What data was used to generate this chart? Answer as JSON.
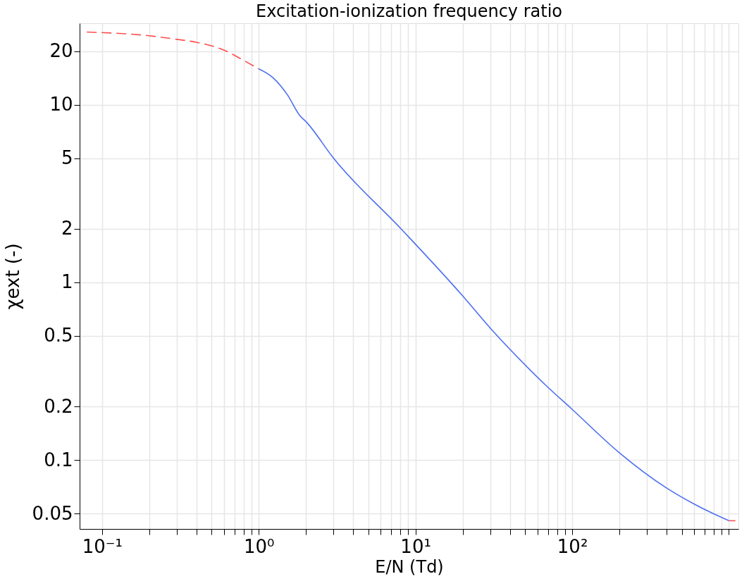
{
  "chart_data": {
    "type": "line",
    "title": "Excitation-ionization frequency ratio",
    "xlabel": "E/N (Td)",
    "ylabel": "χext (-)",
    "log": "xy",
    "grid": true,
    "xlim": [
      0.072,
      1150
    ],
    "ylim": [
      0.041,
      28.7
    ],
    "xticks": [
      {
        "value": 0.1,
        "label": "10⁻¹"
      },
      {
        "value": 0.2,
        "label": null
      },
      {
        "value": 0.3,
        "label": null
      },
      {
        "value": 0.4,
        "label": null
      },
      {
        "value": 0.5,
        "label": null
      },
      {
        "value": 0.6,
        "label": null
      },
      {
        "value": 0.7,
        "label": null
      },
      {
        "value": 0.8,
        "label": null
      },
      {
        "value": 0.9,
        "label": null
      },
      {
        "value": 1,
        "label": "10⁰"
      },
      {
        "value": 2,
        "label": null
      },
      {
        "value": 3,
        "label": null
      },
      {
        "value": 4,
        "label": null
      },
      {
        "value": 5,
        "label": null
      },
      {
        "value": 6,
        "label": null
      },
      {
        "value": 7,
        "label": null
      },
      {
        "value": 8,
        "label": null
      },
      {
        "value": 9,
        "label": null
      },
      {
        "value": 10,
        "label": "10¹"
      },
      {
        "value": 20,
        "label": null
      },
      {
        "value": 30,
        "label": null
      },
      {
        "value": 40,
        "label": null
      },
      {
        "value": 50,
        "label": null
      },
      {
        "value": 60,
        "label": null
      },
      {
        "value": 70,
        "label": null
      },
      {
        "value": 80,
        "label": null
      },
      {
        "value": 90,
        "label": null
      },
      {
        "value": 100,
        "label": "10²"
      },
      {
        "value": 200,
        "label": null
      },
      {
        "value": 300,
        "label": null
      },
      {
        "value": 400,
        "label": null
      },
      {
        "value": 500,
        "label": null
      },
      {
        "value": 600,
        "label": null
      },
      {
        "value": 700,
        "label": null
      },
      {
        "value": 800,
        "label": null
      },
      {
        "value": 900,
        "label": null
      },
      {
        "value": 1000,
        "label": null
      }
    ],
    "yticks": [
      0.05,
      0.1,
      0.2,
      0.5,
      1,
      2,
      5,
      10,
      20
    ],
    "series": [
      {
        "color": "#ff4d4d",
        "line_style": "dashed",
        "x": [
          0.08,
          0.2,
          0.3,
          0.403,
          0.605,
          0.805,
          1
        ],
        "values": [
          25.6,
          24.4,
          23.3,
          22.4,
          20.2,
          17.7,
          15.9
        ]
      },
      {
        "color": "#4d6ff0",
        "line_style": "solid",
        "x": [
          1,
          1.23,
          1.53,
          1.82,
          2.03,
          3,
          8.1,
          20,
          30.2,
          40.1,
          68.4,
          100,
          200,
          397,
          619,
          1000
        ],
        "values": [
          15.9,
          14.2,
          11.3,
          8.73,
          7.92,
          5.0,
          2.0,
          0.84,
          0.55,
          0.42,
          0.262,
          0.193,
          0.11,
          0.07,
          0.0558,
          0.0456
        ]
      },
      {
        "color": "#ff4d4d",
        "line_style": "dashed",
        "x": [
          1000,
          1100
        ],
        "values": [
          0.0456,
          0.0456
        ]
      }
    ]
  }
}
